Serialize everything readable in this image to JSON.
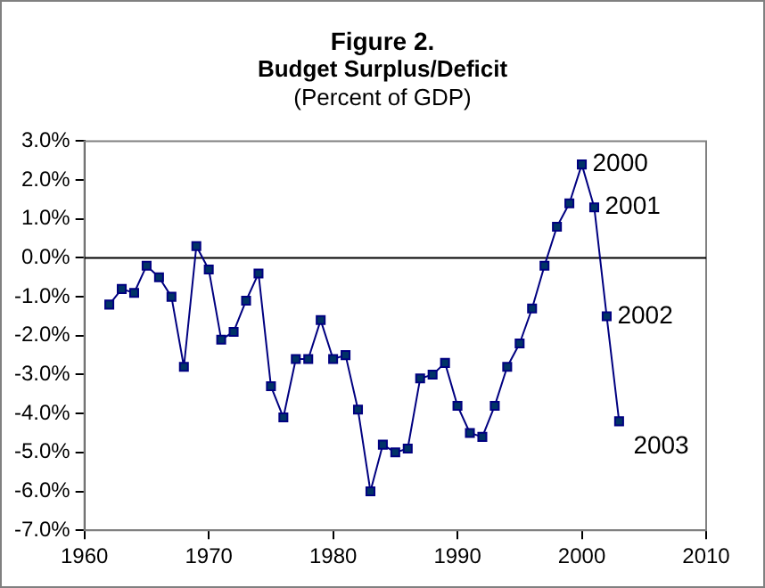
{
  "chart_data": {
    "type": "line",
    "title": "Figure 2.",
    "subtitle": "Budget Surplus/Deficit",
    "annotations": [
      "(Percent of GDP)",
      {
        "text": "2000",
        "x": 2000,
        "y": 2.4
      },
      {
        "text": "2001",
        "x": 2001,
        "y": 1.3
      },
      {
        "text": "2002",
        "x": 2002,
        "y": -1.5
      },
      {
        "text": "2003",
        "x": 2003,
        "y": -4.2
      }
    ],
    "x": [
      1962,
      1963,
      1964,
      1965,
      1966,
      1967,
      1968,
      1969,
      1970,
      1971,
      1972,
      1973,
      1974,
      1975,
      1976,
      1977,
      1978,
      1979,
      1980,
      1981,
      1982,
      1983,
      1984,
      1985,
      1986,
      1987,
      1988,
      1989,
      1990,
      1991,
      1992,
      1993,
      1994,
      1995,
      1996,
      1997,
      1998,
      1999,
      2000,
      2001,
      2002,
      2003
    ],
    "series": [
      {
        "color": "#000080",
        "values": [
          -1.2,
          -0.8,
          -0.9,
          -0.2,
          -0.5,
          -1.0,
          -2.8,
          0.3,
          -0.3,
          -2.1,
          -1.9,
          -1.1,
          -0.4,
          -3.3,
          -4.1,
          -2.6,
          -2.6,
          -1.6,
          -2.6,
          -2.5,
          -3.9,
          -6.0,
          -4.8,
          -5.0,
          -4.9,
          -3.1,
          -3.0,
          -2.7,
          -3.8,
          -4.5,
          -4.6,
          -3.8,
          -2.8,
          -2.2,
          -1.3,
          -0.2,
          0.8,
          1.4,
          2.4,
          1.3,
          -1.5,
          -4.2
        ]
      }
    ],
    "xlim": [
      1960,
      2010
    ],
    "xticks": [
      1960,
      1970,
      1980,
      1990,
      2000,
      2010
    ],
    "ylim": [
      -7,
      3
    ],
    "yticks": [
      {
        "value": 3,
        "label": "3.0%"
      },
      {
        "value": 2,
        "label": "2.0%"
      },
      {
        "value": 1,
        "label": "1.0%"
      },
      {
        "value": 0,
        "label": "0.0%"
      },
      {
        "value": -1,
        "label": "-1.0%"
      },
      {
        "value": -2,
        "label": "-2.0%"
      },
      {
        "value": -3,
        "label": "-3.0%"
      },
      {
        "value": -4,
        "label": "-4.0%"
      },
      {
        "value": -5,
        "label": "-5.0%"
      },
      {
        "value": -6,
        "label": "-6.0%"
      },
      {
        "value": -7,
        "label": "-7.0%"
      }
    ],
    "ref_lines": [
      {
        "axis": "y",
        "value": 0,
        "color": "#000000"
      }
    ],
    "grid": false,
    "legend": false,
    "marker": "square",
    "line_style": "solid"
  }
}
